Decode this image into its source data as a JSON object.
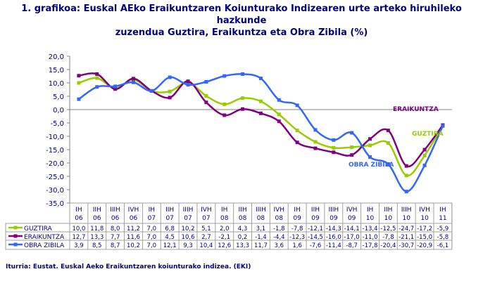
{
  "chart_data": {
    "type": "line",
    "title": "1. grafikoa: Euskal AEko Eraikuntzaren Koiunturako Indizearen urte arteko hiruhileko hazkunde zuzendua Guztira, Eraikuntza eta Obra Zibila (%)",
    "title_lines": [
      "1. grafikoa: Euskal AEko Eraikuntzaren Koiunturako Indizearen urte arteko hiruhileko hazkunde",
      "zuzendua Guztira, Eraikuntza eta Obra Zibila (%)"
    ],
    "categories": [
      [
        "IH",
        "06"
      ],
      [
        "IIH",
        "06"
      ],
      [
        "IIIH",
        "06"
      ],
      [
        "IVH",
        "06"
      ],
      [
        "IH",
        "07"
      ],
      [
        "IIH",
        "07"
      ],
      [
        "IIIH",
        "07"
      ],
      [
        "IVH",
        "07"
      ],
      [
        "IH",
        "08"
      ],
      [
        "IIH",
        "08"
      ],
      [
        "IIIH",
        "08"
      ],
      [
        "IVH",
        "08"
      ],
      [
        "IH",
        "09"
      ],
      [
        "IIH",
        "09"
      ],
      [
        "IIIH",
        "09"
      ],
      [
        "IVH",
        "09"
      ],
      [
        "IH",
        "10"
      ],
      [
        "IIH",
        "10"
      ],
      [
        "IIIH",
        "10"
      ],
      [
        "IVH",
        "10"
      ],
      [
        "IH",
        "11"
      ]
    ],
    "ylim": [
      -35,
      20
    ],
    "yticks": [
      "20,0",
      "15,0",
      "10,0",
      "5,0",
      "0,0",
      "-5,0",
      "-10,0",
      "-15,0",
      "-20,0",
      "-25,0",
      "-30,0",
      "-35,0"
    ],
    "grid": false,
    "series": [
      {
        "name": "GUZTIRA",
        "color": "#99cc00",
        "label": "GUZTIRA",
        "values": [
          10.0,
          11.8,
          8.0,
          11.2,
          7.0,
          6.8,
          10.2,
          5.1,
          2.0,
          4.3,
          3.1,
          -1.8,
          -7.8,
          -12.1,
          -14.3,
          -14.1,
          -13.4,
          -12.5,
          -24.7,
          -17.2,
          -5.9
        ]
      },
      {
        "name": "ERAIKUNTZA",
        "color": "#800080",
        "label": "ERAIKUNTZA",
        "values": [
          12.7,
          13.3,
          7.7,
          11.6,
          7.0,
          4.5,
          10.6,
          2.7,
          -2.1,
          0.2,
          -1.4,
          -4.4,
          -12.3,
          -14.5,
          -16.0,
          -17.0,
          -11.0,
          -7.8,
          -21.1,
          -15.0,
          -5.8
        ]
      },
      {
        "name": "OBRA ZIBILA",
        "color": "#3366ff",
        "label": "OBRA ZIBILA",
        "values": [
          3.9,
          8.5,
          8.7,
          10.2,
          7.0,
          12.1,
          9.3,
          10.4,
          12.6,
          13.3,
          11.7,
          3.6,
          1.6,
          -7.6,
          -11.4,
          -8.7,
          -17.8,
          -20.4,
          -30.7,
          -20.9,
          -6.1
        ]
      }
    ],
    "source": "Iturria: Eustat. Euskal Aeko Eraikuntzaren koiunturako indizea. (EKI)"
  }
}
